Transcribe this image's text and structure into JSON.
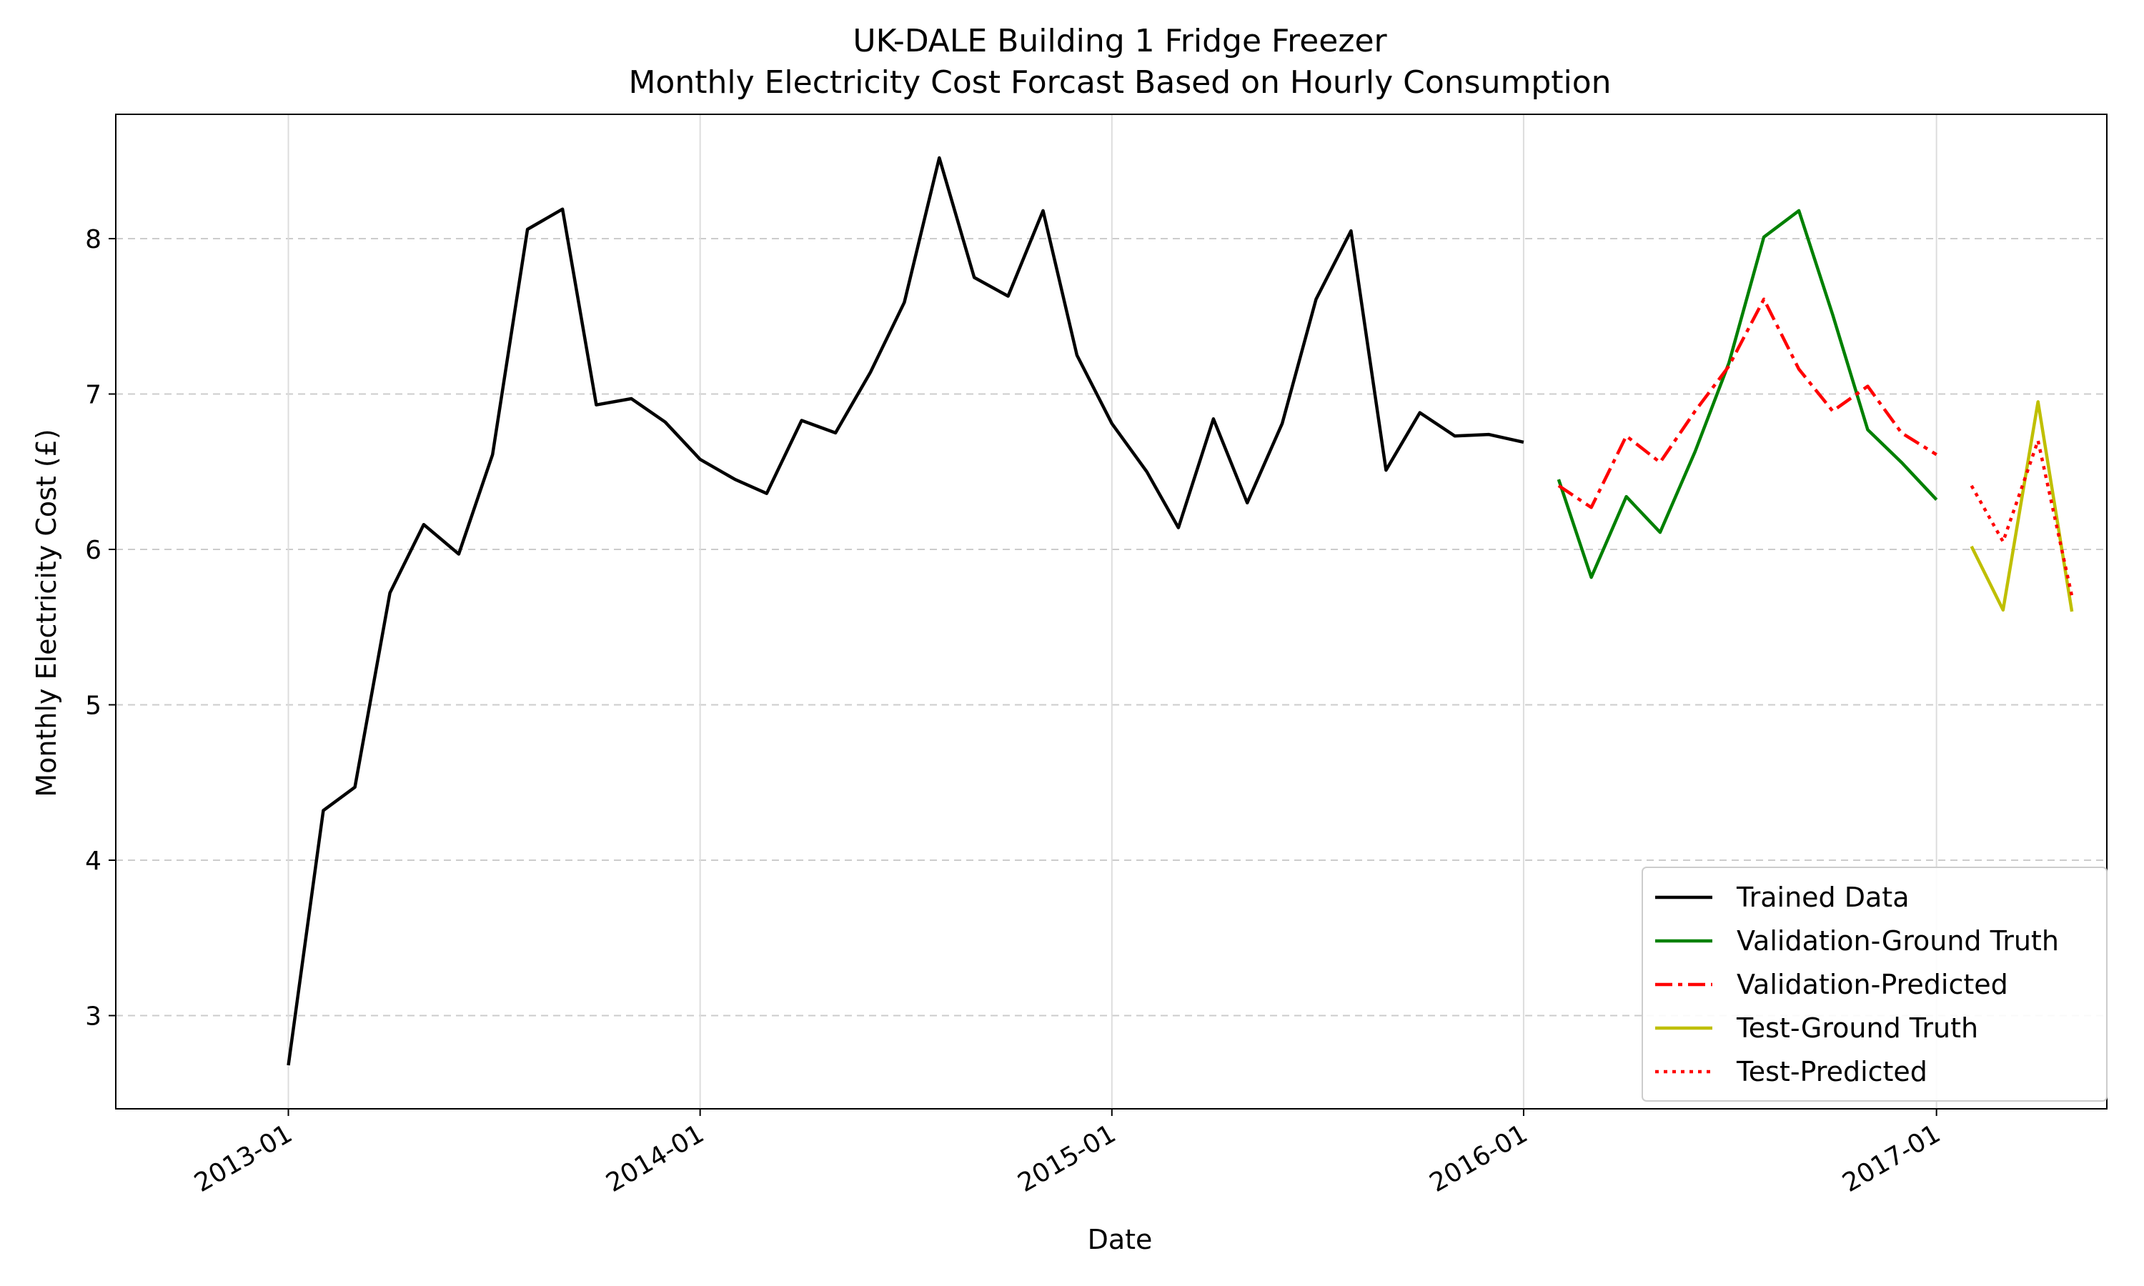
{
  "chart_data": {
    "type": "line",
    "title": "UK-DALE Building 1 Fridge Freezer",
    "subtitle": "Monthly Electricity Cost Forcast Based on Hourly Consumption",
    "xlabel": "Date",
    "ylabel": "Monthly Electricity Cost (£)",
    "xlim": [
      "2012-08-01",
      "2017-06-01"
    ],
    "ylim": [
      2.4,
      8.8
    ],
    "yticks": [
      3,
      4,
      5,
      6,
      7,
      8
    ],
    "xticks": [
      "2013-01",
      "2014-01",
      "2015-01",
      "2016-01",
      "2017-01"
    ],
    "grid": true,
    "legend_position": "lower right",
    "series": [
      {
        "name": "Trained Data",
        "color": "#000000",
        "dash": "solid",
        "x": [
          "2013-01",
          "2013-02",
          "2013-03",
          "2013-04",
          "2013-05",
          "2013-06",
          "2013-07",
          "2013-08",
          "2013-09",
          "2013-10",
          "2013-11",
          "2013-12",
          "2014-01",
          "2014-02",
          "2014-03",
          "2014-04",
          "2014-05",
          "2014-06",
          "2014-07",
          "2014-08",
          "2014-09",
          "2014-10",
          "2014-11",
          "2014-12",
          "2015-01",
          "2015-02",
          "2015-03",
          "2015-04",
          "2015-05",
          "2015-06",
          "2015-07",
          "2015-08",
          "2015-09",
          "2015-10",
          "2015-11",
          "2015-12",
          "2016-01"
        ],
        "y": [
          2.68,
          4.32,
          4.47,
          5.72,
          6.16,
          5.97,
          6.61,
          8.06,
          8.19,
          6.93,
          6.97,
          6.82,
          6.58,
          6.45,
          6.36,
          6.83,
          6.75,
          7.14,
          7.59,
          8.52,
          7.75,
          7.63,
          8.18,
          7.25,
          6.81,
          6.5,
          6.14,
          6.84,
          6.3,
          6.81,
          7.61,
          8.05,
          6.51,
          6.88,
          6.73,
          6.74,
          6.69
        ]
      },
      {
        "name": "Validation-Ground Truth",
        "color": "#008000",
        "dash": "solid",
        "x": [
          "2016-02",
          "2016-03",
          "2016-04",
          "2016-05",
          "2016-06",
          "2016-07",
          "2016-08",
          "2016-09",
          "2016-10",
          "2016-11",
          "2016-12",
          "2017-01"
        ],
        "y": [
          6.45,
          5.82,
          6.34,
          6.11,
          6.63,
          7.2,
          8.01,
          8.18,
          7.51,
          6.77,
          6.56,
          6.32
        ]
      },
      {
        "name": "Validation-Predicted",
        "color": "#ff0000",
        "dash": "dashdot",
        "x": [
          "2016-02",
          "2016-03",
          "2016-04",
          "2016-05",
          "2016-06",
          "2016-07",
          "2016-08",
          "2016-09",
          "2016-10",
          "2016-11",
          "2016-12",
          "2017-01"
        ],
        "y": [
          6.41,
          6.27,
          6.73,
          6.56,
          6.89,
          7.18,
          7.61,
          7.16,
          6.89,
          7.05,
          6.75,
          6.61
        ]
      },
      {
        "name": "Test-Ground Truth",
        "color": "#bfbf00",
        "dash": "solid",
        "x": [
          "2017-02",
          "2017-03",
          "2017-04",
          "2017-05"
        ],
        "y": [
          6.02,
          5.61,
          6.95,
          5.6
        ]
      },
      {
        "name": "Test-Predicted",
        "color": "#ff0000",
        "dash": "dotted",
        "x": [
          "2017-02",
          "2017-03",
          "2017-04",
          "2017-05"
        ],
        "y": [
          6.41,
          6.05,
          6.7,
          5.7
        ]
      }
    ]
  }
}
